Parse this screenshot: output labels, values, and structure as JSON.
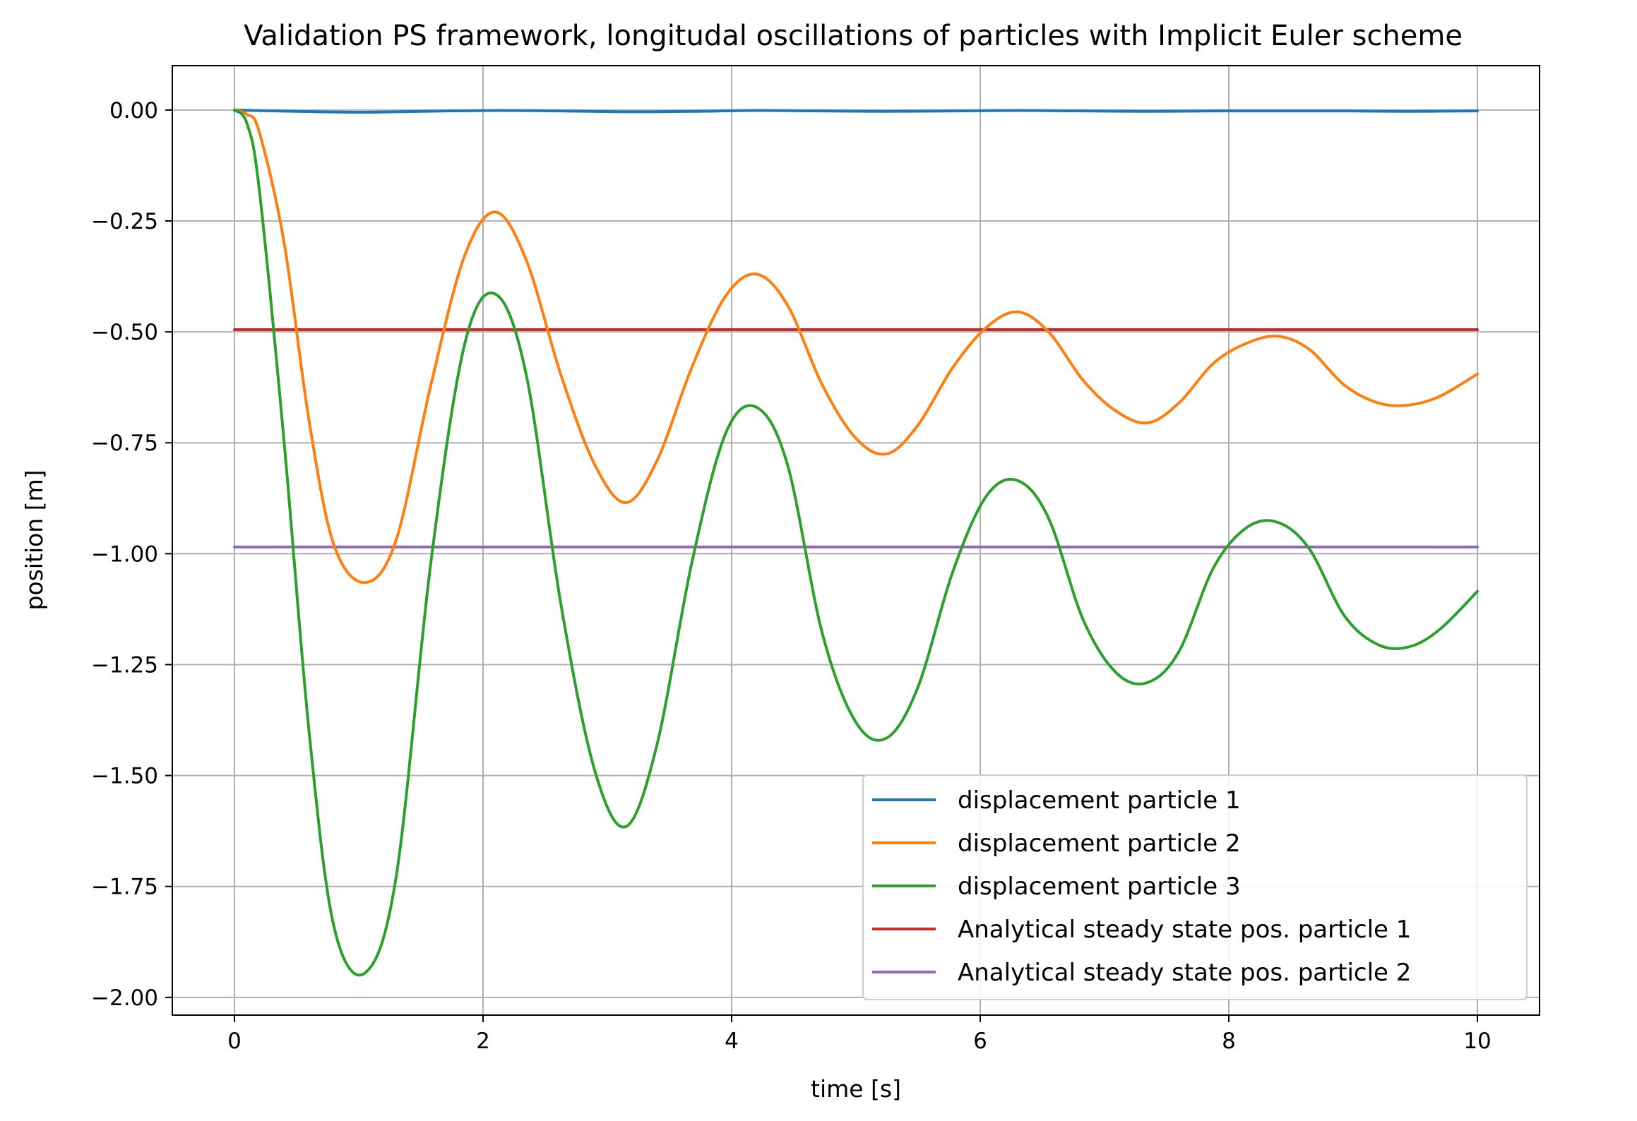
{
  "chart_data": {
    "type": "line",
    "title": "Validation PS framework, longitudal oscillations of particles with Implicit Euler scheme",
    "xlabel": "time [s]",
    "ylabel": "position [m]",
    "xlim": [
      -0.5,
      10.5
    ],
    "ylim": [
      -2.04,
      0.1
    ],
    "xticks": [
      0,
      2,
      4,
      6,
      8,
      10
    ],
    "xtick_labels": [
      "0",
      "2",
      "4",
      "6",
      "8",
      "10"
    ],
    "yticks": [
      0.0,
      -0.25,
      -0.5,
      -0.75,
      -1.0,
      -1.25,
      -1.5,
      -1.75,
      -2.0
    ],
    "ytick_labels": [
      "0.00",
      "−0.25",
      "−0.50",
      "−0.75",
      "−1.00",
      "−1.25",
      "−1.50",
      "−1.75",
      "−2.00"
    ],
    "grid": true,
    "legend_position": "lower-right",
    "series": [
      {
        "name": "displacement particle 1",
        "color": "#1f77b4",
        "x": [
          0,
          0.5,
          1.05,
          1.5,
          2.1,
          2.6,
          3.15,
          3.7,
          4.2,
          4.7,
          5.25,
          5.8,
          6.3,
          6.8,
          7.35,
          7.9,
          8.4,
          8.9,
          9.45,
          10
        ],
        "y": [
          0,
          -0.003,
          -0.005,
          -0.003,
          -0.001,
          -0.002,
          -0.004,
          -0.003,
          -0.001,
          -0.002,
          -0.003,
          -0.002,
          -0.001,
          -0.002,
          -0.003,
          -0.002,
          -0.002,
          -0.002,
          -0.003,
          -0.002
        ]
      },
      {
        "name": "displacement particle 2",
        "color": "#ff7f0e",
        "x": [
          0,
          0.1,
          0.2,
          0.4,
          0.6,
          0.8,
          1.05,
          1.3,
          1.58,
          1.85,
          2.1,
          2.35,
          2.63,
          2.9,
          3.15,
          3.4,
          3.68,
          3.95,
          4.2,
          4.45,
          4.73,
          5.0,
          5.25,
          5.5,
          5.78,
          6.05,
          6.3,
          6.55,
          6.83,
          7.1,
          7.35,
          7.6,
          7.88,
          8.15,
          8.4,
          8.65,
          8.93,
          9.2,
          9.45,
          9.7,
          10
        ],
        "y": [
          0,
          -0.01,
          -0.05,
          -0.3,
          -0.7,
          -0.98,
          -1.065,
          -0.97,
          -0.62,
          -0.33,
          -0.23,
          -0.34,
          -0.6,
          -0.8,
          -0.885,
          -0.79,
          -0.58,
          -0.42,
          -0.37,
          -0.44,
          -0.62,
          -0.74,
          -0.775,
          -0.71,
          -0.58,
          -0.49,
          -0.455,
          -0.5,
          -0.61,
          -0.68,
          -0.705,
          -0.66,
          -0.57,
          -0.525,
          -0.51,
          -0.54,
          -0.62,
          -0.66,
          -0.665,
          -0.645,
          -0.595
        ]
      },
      {
        "name": "displacement particle 3",
        "color": "#2ca02c",
        "x": [
          0,
          0.1,
          0.2,
          0.4,
          0.6,
          0.8,
          1.05,
          1.3,
          1.58,
          1.85,
          2.1,
          2.35,
          2.63,
          2.9,
          3.15,
          3.4,
          3.68,
          3.95,
          4.2,
          4.45,
          4.73,
          5.0,
          5.25,
          5.5,
          5.78,
          6.05,
          6.3,
          6.55,
          6.83,
          7.1,
          7.35,
          7.6,
          7.88,
          8.15,
          8.4,
          8.65,
          8.93,
          9.2,
          9.45,
          9.7,
          10
        ],
        "y": [
          0,
          -0.03,
          -0.18,
          -0.75,
          -1.4,
          -1.84,
          -1.945,
          -1.73,
          -1.02,
          -0.53,
          -0.415,
          -0.6,
          -1.12,
          -1.49,
          -1.615,
          -1.43,
          -1.02,
          -0.73,
          -0.67,
          -0.8,
          -1.18,
          -1.38,
          -1.415,
          -1.3,
          -1.04,
          -0.87,
          -0.835,
          -0.92,
          -1.15,
          -1.27,
          -1.29,
          -1.22,
          -1.03,
          -0.94,
          -0.93,
          -0.99,
          -1.14,
          -1.205,
          -1.21,
          -1.17,
          -1.085
        ]
      },
      {
        "name": "Analytical steady state pos. particle 1",
        "color": "#d62728",
        "x": [
          0,
          10
        ],
        "y": [
          -0.495,
          -0.495
        ]
      },
      {
        "name": "Analytical steady state pos. particle 2",
        "color": "#9467bd",
        "x": [
          0,
          10
        ],
        "y": [
          -0.985,
          -0.985
        ]
      }
    ]
  }
}
